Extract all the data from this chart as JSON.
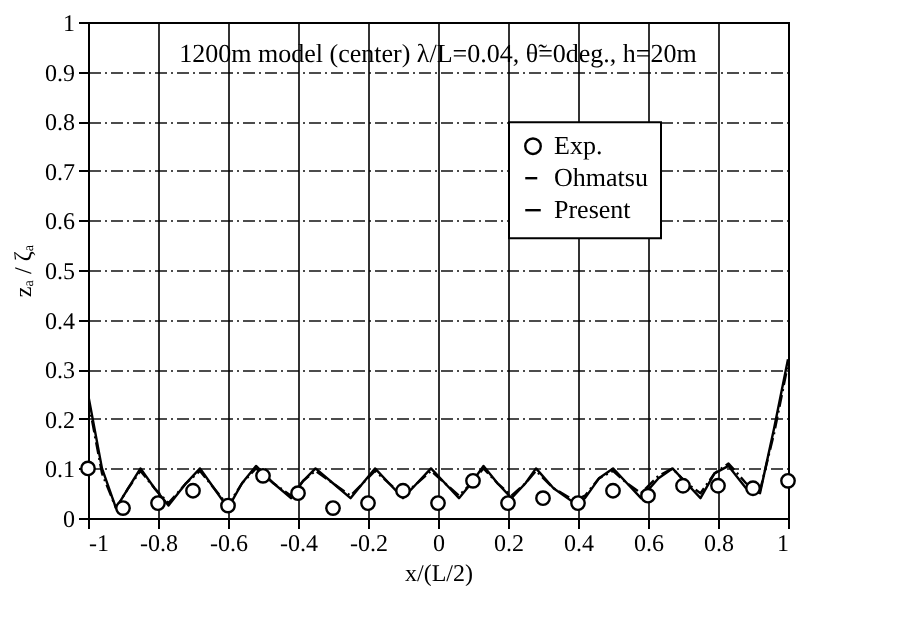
{
  "chart_data": {
    "type": "line",
    "xlabel": "x/(L/2)",
    "ylabel": "zₐ / ζₐ",
    "annotations": [
      "1200m model (center)   λ/L=0.04,  θ̃=0deg., h=20m"
    ],
    "xlim": [
      -1,
      1
    ],
    "xticks": [
      -1,
      -0.8,
      -0.6,
      -0.4,
      -0.2,
      0,
      0.2,
      0.4,
      0.6,
      0.8,
      1
    ],
    "ylim": [
      0,
      1
    ],
    "yticks": [
      0,
      0.1,
      0.2,
      0.3,
      0.4,
      0.5,
      0.6,
      0.7,
      0.8,
      0.9,
      1
    ],
    "grid": true,
    "legend": "top right",
    "series": [
      {
        "name": "Exp.",
        "type": "scatter",
        "marker": "circle",
        "color": "#000000",
        "x": [
          -1,
          -0.9,
          -0.8,
          -0.7,
          -0.6,
          -0.5,
          -0.4,
          -0.3,
          -0.2,
          -0.1,
          0,
          0.1,
          0.2,
          0.3,
          0.4,
          0.5,
          0.6,
          0.7,
          0.8,
          0.9,
          1
        ],
        "values": [
          0.1,
          0.02,
          0.03,
          0.055,
          0.025,
          0.085,
          0.05,
          0.02,
          0.03,
          0.055,
          0.03,
          0.075,
          0.03,
          0.04,
          0.03,
          0.055,
          0.045,
          0.065,
          0.065,
          0.06,
          0.075
        ]
      },
      {
        "name": "Ohmatsu",
        "line_style": "dotted",
        "color": "#000000",
        "x": [
          -1,
          -0.96,
          -0.92,
          -0.885,
          -0.85,
          -0.81,
          -0.77,
          -0.72,
          -0.68,
          -0.64,
          -0.6,
          -0.56,
          -0.52,
          -0.47,
          -0.42,
          -0.385,
          -0.35,
          -0.3,
          -0.25,
          -0.215,
          -0.18,
          -0.14,
          -0.1,
          -0.06,
          -0.02,
          0.02,
          0.06,
          0.095,
          0.13,
          0.17,
          0.21,
          0.25,
          0.28,
          0.33,
          0.39,
          0.42,
          0.46,
          0.5,
          0.54,
          0.58,
          0.63,
          0.67,
          0.71,
          0.75,
          0.79,
          0.83,
          0.88,
          0.92,
          0.96,
          1.0
        ],
        "values": [
          0.24,
          0.09,
          0.02,
          0.06,
          0.095,
          0.06,
          0.03,
          0.07,
          0.095,
          0.06,
          0.025,
          0.07,
          0.1,
          0.07,
          0.045,
          0.075,
          0.095,
          0.07,
          0.045,
          0.07,
          0.095,
          0.07,
          0.045,
          0.07,
          0.095,
          0.07,
          0.045,
          0.07,
          0.1,
          0.07,
          0.045,
          0.07,
          0.095,
          0.06,
          0.035,
          0.045,
          0.08,
          0.095,
          0.07,
          0.05,
          0.085,
          0.1,
          0.07,
          0.05,
          0.09,
          0.11,
          0.07,
          0.055,
          0.17,
          0.31
        ]
      },
      {
        "name": "Present",
        "line_style": "solid",
        "color": "#000000",
        "x": [
          -1,
          -0.96,
          -0.92,
          -0.885,
          -0.85,
          -0.81,
          -0.77,
          -0.72,
          -0.68,
          -0.64,
          -0.6,
          -0.56,
          -0.52,
          -0.47,
          -0.42,
          -0.385,
          -0.35,
          -0.3,
          -0.25,
          -0.215,
          -0.18,
          -0.14,
          -0.1,
          -0.06,
          -0.02,
          0.02,
          0.06,
          0.095,
          0.13,
          0.17,
          0.21,
          0.25,
          0.28,
          0.33,
          0.39,
          0.42,
          0.46,
          0.5,
          0.54,
          0.58,
          0.63,
          0.67,
          0.71,
          0.75,
          0.79,
          0.83,
          0.88,
          0.92,
          0.96,
          1.0
        ],
        "values": [
          0.25,
          0.1,
          0.02,
          0.06,
          0.1,
          0.06,
          0.025,
          0.07,
          0.1,
          0.06,
          0.02,
          0.07,
          0.105,
          0.07,
          0.04,
          0.075,
          0.1,
          0.07,
          0.04,
          0.07,
          0.1,
          0.07,
          0.04,
          0.07,
          0.1,
          0.07,
          0.04,
          0.07,
          0.105,
          0.07,
          0.04,
          0.07,
          0.1,
          0.06,
          0.03,
          0.04,
          0.08,
          0.1,
          0.07,
          0.04,
          0.08,
          0.1,
          0.07,
          0.04,
          0.09,
          0.105,
          0.06,
          0.05,
          0.18,
          0.32
        ]
      }
    ]
  }
}
